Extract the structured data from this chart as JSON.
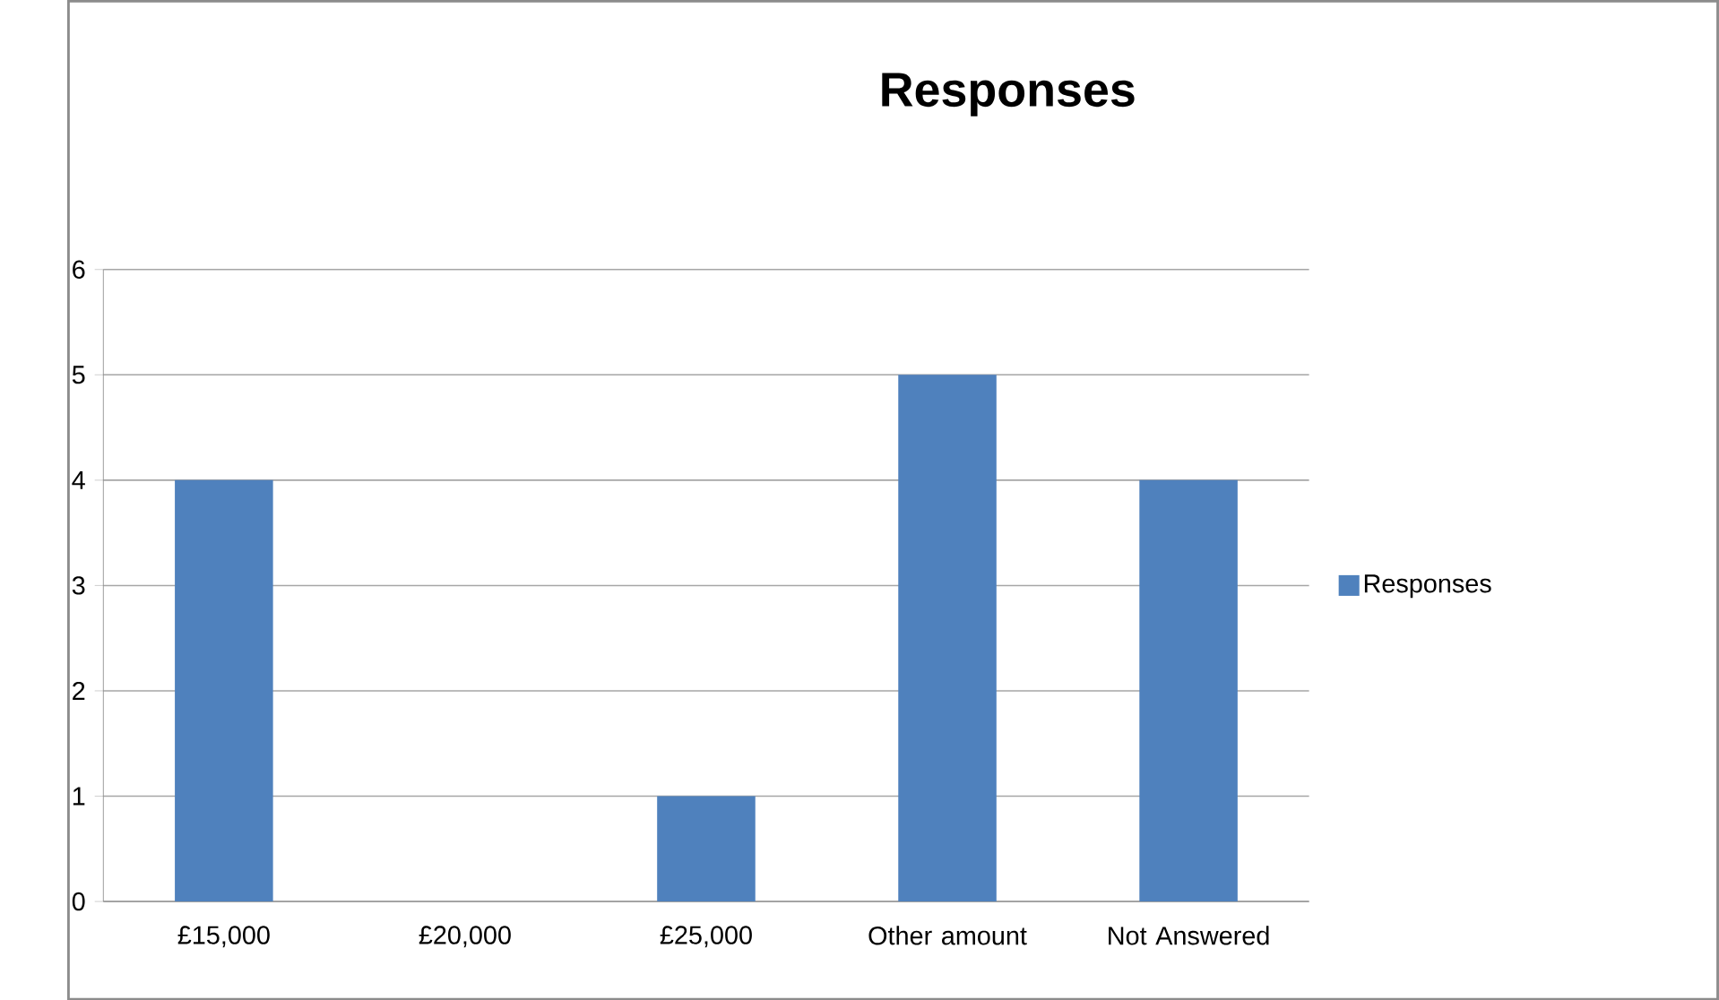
{
  "chart_data": {
    "type": "bar",
    "title": "Responses",
    "categories": [
      "£15,000",
      "£20,000",
      "£25,000",
      "Other amount",
      "Not Answered"
    ],
    "series": [
      {
        "name": "Responses",
        "color": "#4f81bd",
        "values": [
          4,
          0,
          1,
          5,
          4
        ]
      }
    ],
    "ylim": [
      0,
      6
    ],
    "yticks": [
      0,
      1,
      2,
      3,
      4,
      5,
      6
    ],
    "grid": "y",
    "legend": "right"
  }
}
